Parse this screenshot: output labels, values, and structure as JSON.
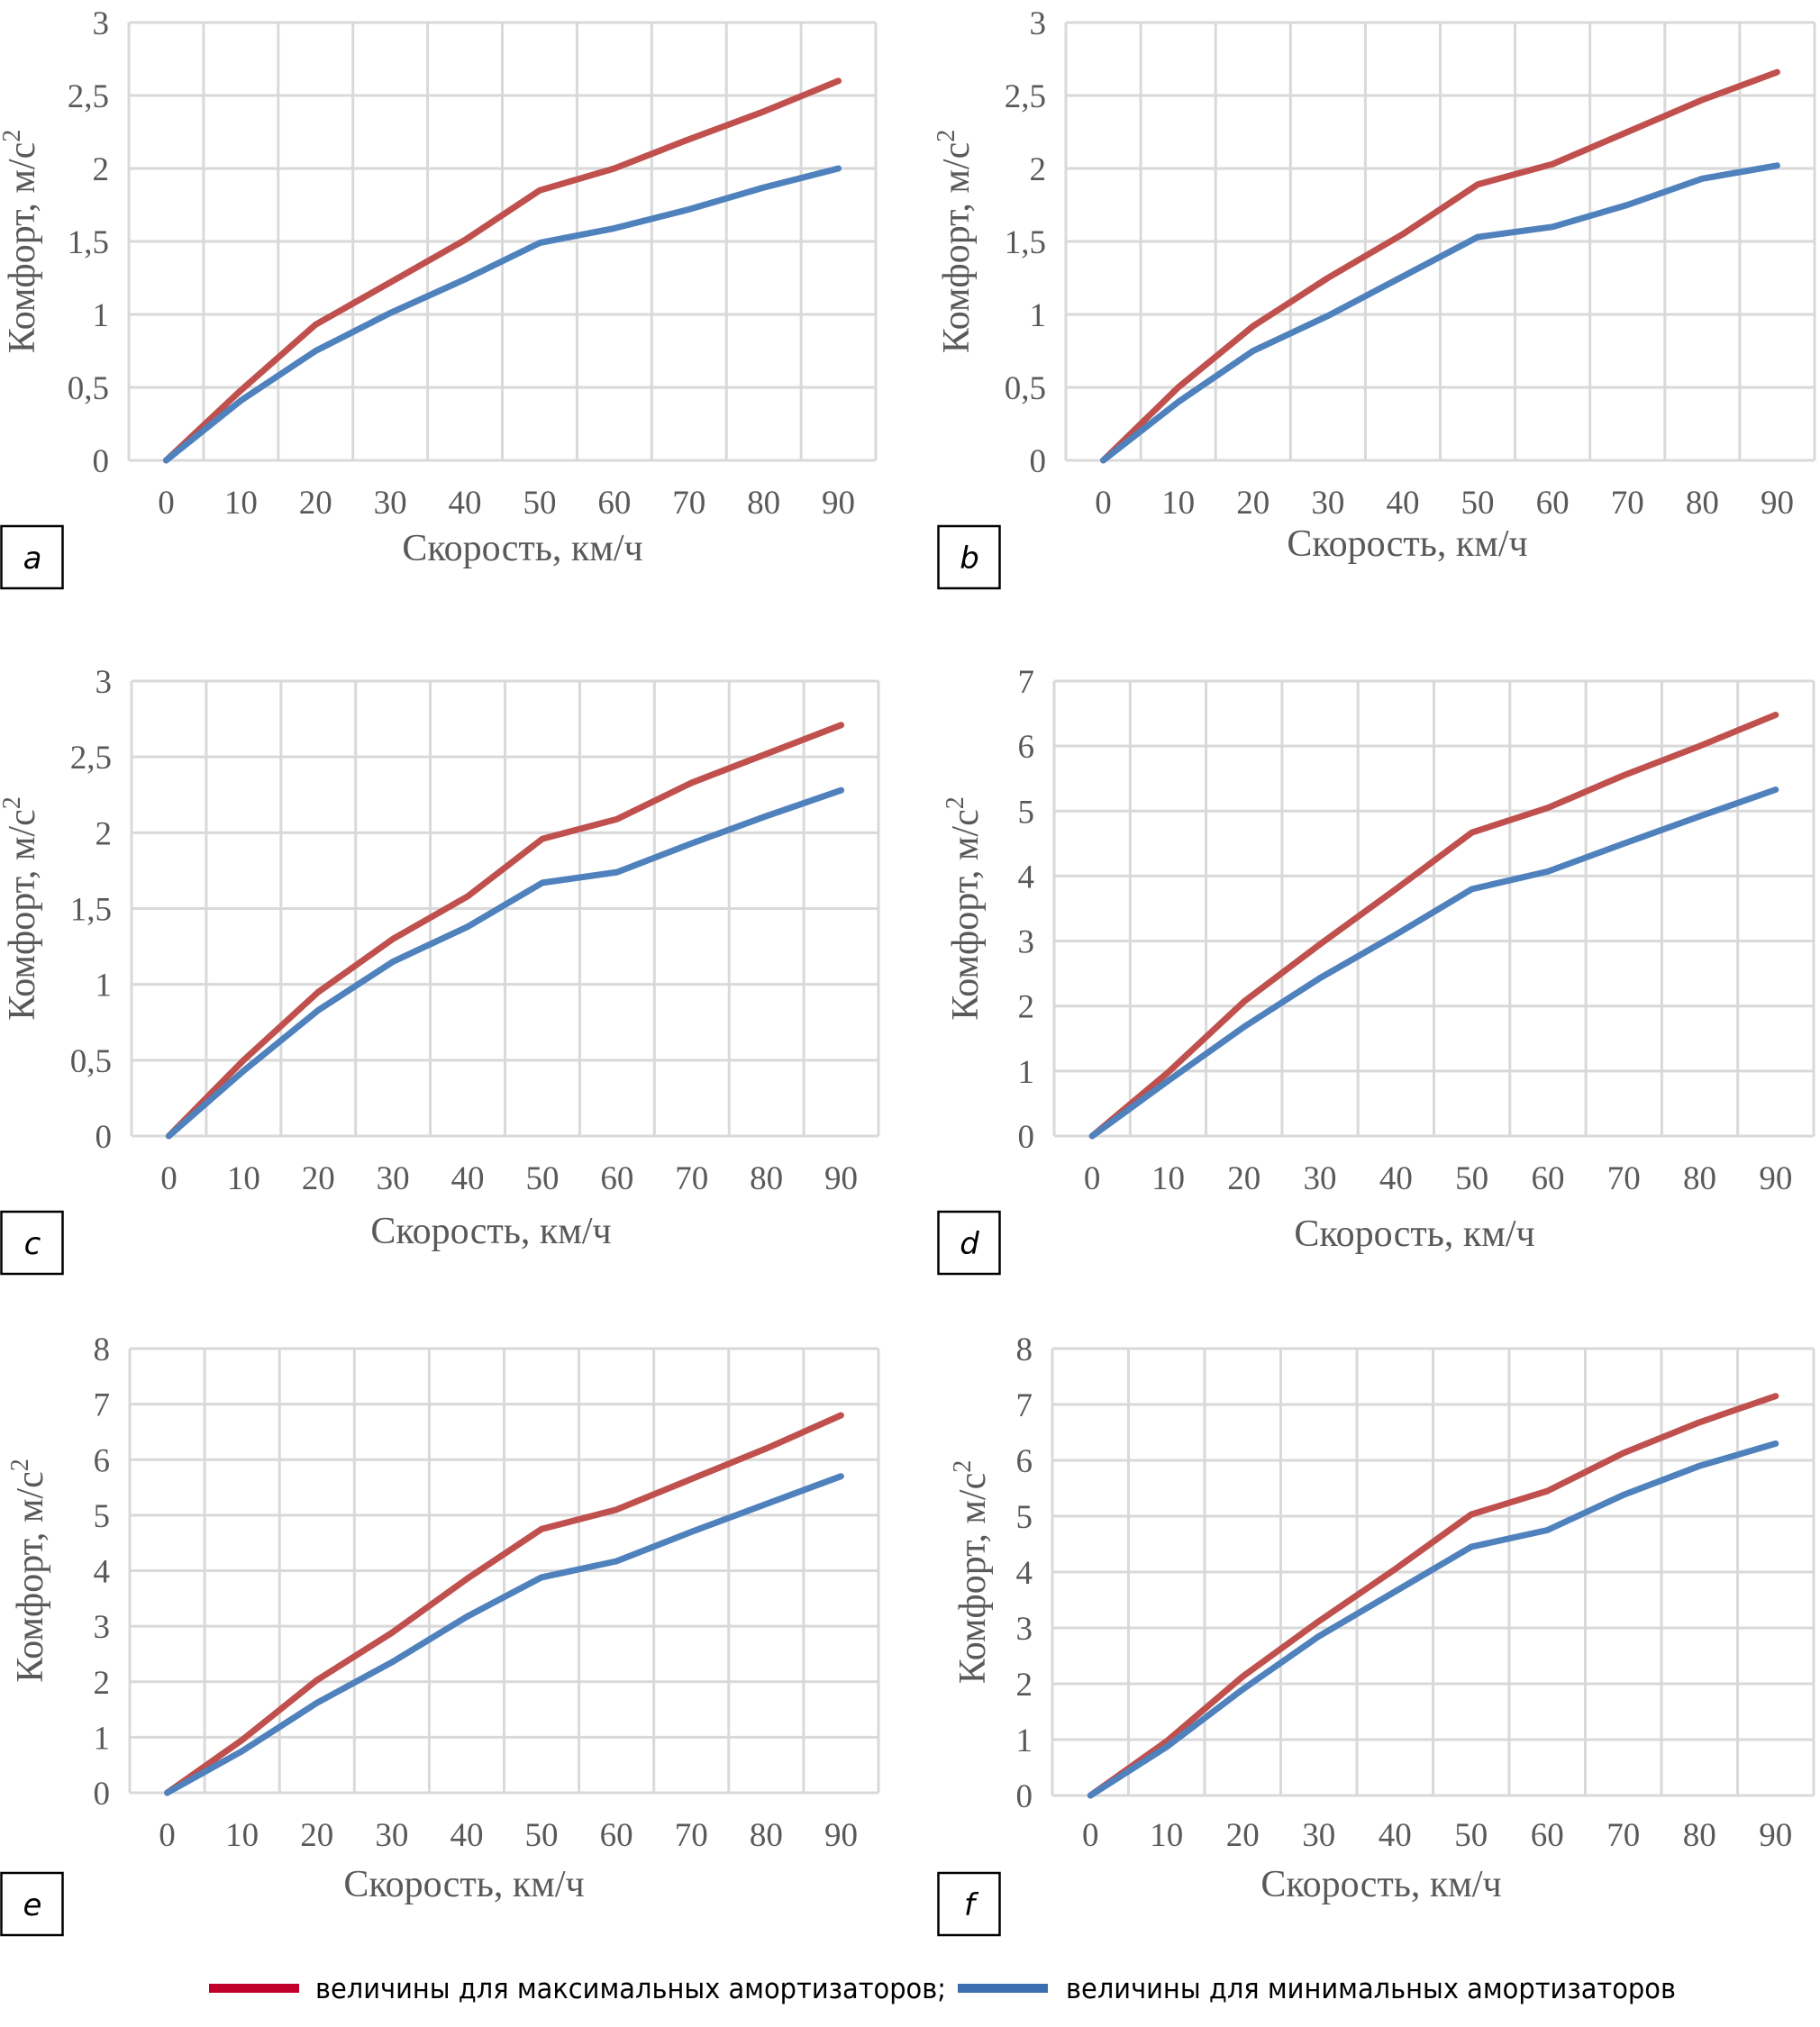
{
  "legend": {
    "items": [
      {
        "label": "величины для максимальных амортизаторов;",
        "color": "#C0002A"
      },
      {
        "label": "величины для минимальных амортизаторов",
        "color": "#3A6EB0"
      }
    ]
  },
  "chart_data": [
    {
      "panel": "a",
      "type": "line",
      "xlabel": "Скорость, км/ч",
      "ylabel": "Комфорт, м/с",
      "ylabel_sup": "2",
      "categories": [
        "0",
        "10",
        "20",
        "30",
        "40",
        "50",
        "60",
        "70",
        "80",
        "90"
      ],
      "ylim": [
        0,
        3
      ],
      "yticks": [
        "0",
        "0,5",
        "1",
        "1,5",
        "2",
        "2,5",
        "3"
      ],
      "ytick_values": [
        0,
        0.5,
        1,
        1.5,
        2,
        2.5,
        3
      ],
      "grid": true,
      "series": [
        {
          "name": "величины для максимальных амортизаторов",
          "color": "#C0504D",
          "values": [
            0,
            0.48,
            0.93,
            1.22,
            1.51,
            1.85,
            2.0,
            2.2,
            2.39,
            2.6
          ]
        },
        {
          "name": "величины для минимальных амортизаторов",
          "color": "#4F81BD",
          "values": [
            0,
            0.41,
            0.75,
            1.01,
            1.24,
            1.49,
            1.59,
            1.72,
            1.87,
            2.0
          ]
        }
      ]
    },
    {
      "panel": "b",
      "type": "line",
      "xlabel": "Скорость, км/ч",
      "ylabel": "Комфорт, м/с",
      "ylabel_sup": "2",
      "categories": [
        "0",
        "10",
        "20",
        "30",
        "40",
        "50",
        "60",
        "70",
        "80",
        "90"
      ],
      "ylim": [
        0,
        3
      ],
      "yticks": [
        "0",
        "0,5",
        "1",
        "1,5",
        "2",
        "2,5",
        "3"
      ],
      "ytick_values": [
        0,
        0.5,
        1,
        1.5,
        2,
        2.5,
        3
      ],
      "grid": true,
      "series": [
        {
          "name": "величины для максимальных амортизаторов",
          "color": "#C0504D",
          "values": [
            0,
            0.5,
            0.92,
            1.25,
            1.55,
            1.89,
            2.03,
            2.25,
            2.47,
            2.66
          ]
        },
        {
          "name": "величины для минимальных амортизаторов",
          "color": "#4F81BD",
          "values": [
            0,
            0.4,
            0.75,
            0.99,
            1.26,
            1.53,
            1.6,
            1.75,
            1.93,
            2.02
          ]
        }
      ]
    },
    {
      "panel": "c",
      "type": "line",
      "xlabel": "Скорость, км/ч",
      "ylabel": "Комфорт, м/с",
      "ylabel_sup": "2",
      "categories": [
        "0",
        "10",
        "20",
        "30",
        "40",
        "50",
        "60",
        "70",
        "80",
        "90"
      ],
      "ylim": [
        0,
        3
      ],
      "yticks": [
        "0",
        "0,5",
        "1",
        "1,5",
        "2",
        "2,5",
        "3"
      ],
      "ytick_values": [
        0,
        0.5,
        1,
        1.5,
        2,
        2.5,
        3
      ],
      "grid": true,
      "series": [
        {
          "name": "величины для максимальных амортизаторов",
          "color": "#C0504D",
          "values": [
            0,
            0.5,
            0.95,
            1.3,
            1.58,
            1.96,
            2.09,
            2.33,
            2.52,
            2.71
          ]
        },
        {
          "name": "величины для минимальных амортизаторов",
          "color": "#4F81BD",
          "values": [
            0,
            0.43,
            0.83,
            1.15,
            1.38,
            1.67,
            1.74,
            1.93,
            2.11,
            2.28
          ]
        }
      ]
    },
    {
      "panel": "d",
      "type": "line",
      "xlabel": "Скорость, км/ч",
      "ylabel": "Комфорт, м/с",
      "ylabel_sup": "2",
      "categories": [
        "0",
        "10",
        "20",
        "30",
        "40",
        "50",
        "60",
        "70",
        "80",
        "90"
      ],
      "ylim": [
        0,
        7
      ],
      "yticks": [
        "0",
        "1",
        "2",
        "3",
        "4",
        "5",
        "6",
        "7"
      ],
      "ytick_values": [
        0,
        1,
        2,
        3,
        4,
        5,
        6,
        7
      ],
      "grid": true,
      "series": [
        {
          "name": "величины для максимальных амортизаторов",
          "color": "#C0504D",
          "values": [
            0,
            0.98,
            2.07,
            2.95,
            3.8,
            4.67,
            5.05,
            5.55,
            6.0,
            6.48
          ]
        },
        {
          "name": "величины для минимальных амортизаторов",
          "color": "#4F81BD",
          "values": [
            0,
            0.85,
            1.68,
            2.43,
            3.1,
            3.8,
            4.07,
            4.5,
            4.92,
            5.33
          ]
        }
      ]
    },
    {
      "panel": "e",
      "type": "line",
      "xlabel": "Скорость, км/ч",
      "ylabel": "Комфорт, м/с",
      "ylabel_sup": "2",
      "categories": [
        "0",
        "10",
        "20",
        "30",
        "40",
        "50",
        "60",
        "70",
        "80",
        "90"
      ],
      "ylim": [
        0,
        8
      ],
      "yticks": [
        "0",
        "1",
        "2",
        "3",
        "4",
        "5",
        "6",
        "7",
        "8"
      ],
      "ytick_values": [
        0,
        1,
        2,
        3,
        4,
        5,
        6,
        7,
        8
      ],
      "grid": true,
      "series": [
        {
          "name": "величины для максимальных амортизаторов",
          "color": "#C0504D",
          "values": [
            0,
            0.95,
            2.03,
            2.88,
            3.85,
            4.75,
            5.1,
            5.65,
            6.2,
            6.8
          ]
        },
        {
          "name": "величины для минимальных амортизаторов",
          "color": "#4F81BD",
          "values": [
            0,
            0.75,
            1.62,
            2.35,
            3.17,
            3.88,
            4.17,
            4.7,
            5.2,
            5.7
          ]
        }
      ]
    },
    {
      "panel": "f",
      "type": "line",
      "xlabel": "Скорость, км/ч",
      "ylabel": "Комфорт, м/с",
      "ylabel_sup": "2",
      "categories": [
        "0",
        "10",
        "20",
        "30",
        "40",
        "50",
        "60",
        "70",
        "80",
        "90"
      ],
      "ylim": [
        0,
        8
      ],
      "yticks": [
        "0",
        "1",
        "2",
        "3",
        "4",
        "5",
        "6",
        "7",
        "8"
      ],
      "ytick_values": [
        0,
        1,
        2,
        3,
        4,
        5,
        6,
        7,
        8
      ],
      "grid": true,
      "series": [
        {
          "name": "величины для максимальных амортизаторов",
          "color": "#C0504D",
          "values": [
            0,
            0.97,
            2.13,
            3.12,
            4.05,
            5.03,
            5.45,
            6.13,
            6.68,
            7.15
          ]
        },
        {
          "name": "величины для минимальных амортизаторов",
          "color": "#4F81BD",
          "values": [
            0,
            0.87,
            1.9,
            2.85,
            3.65,
            4.45,
            4.75,
            5.38,
            5.9,
            6.3
          ]
        }
      ]
    }
  ]
}
